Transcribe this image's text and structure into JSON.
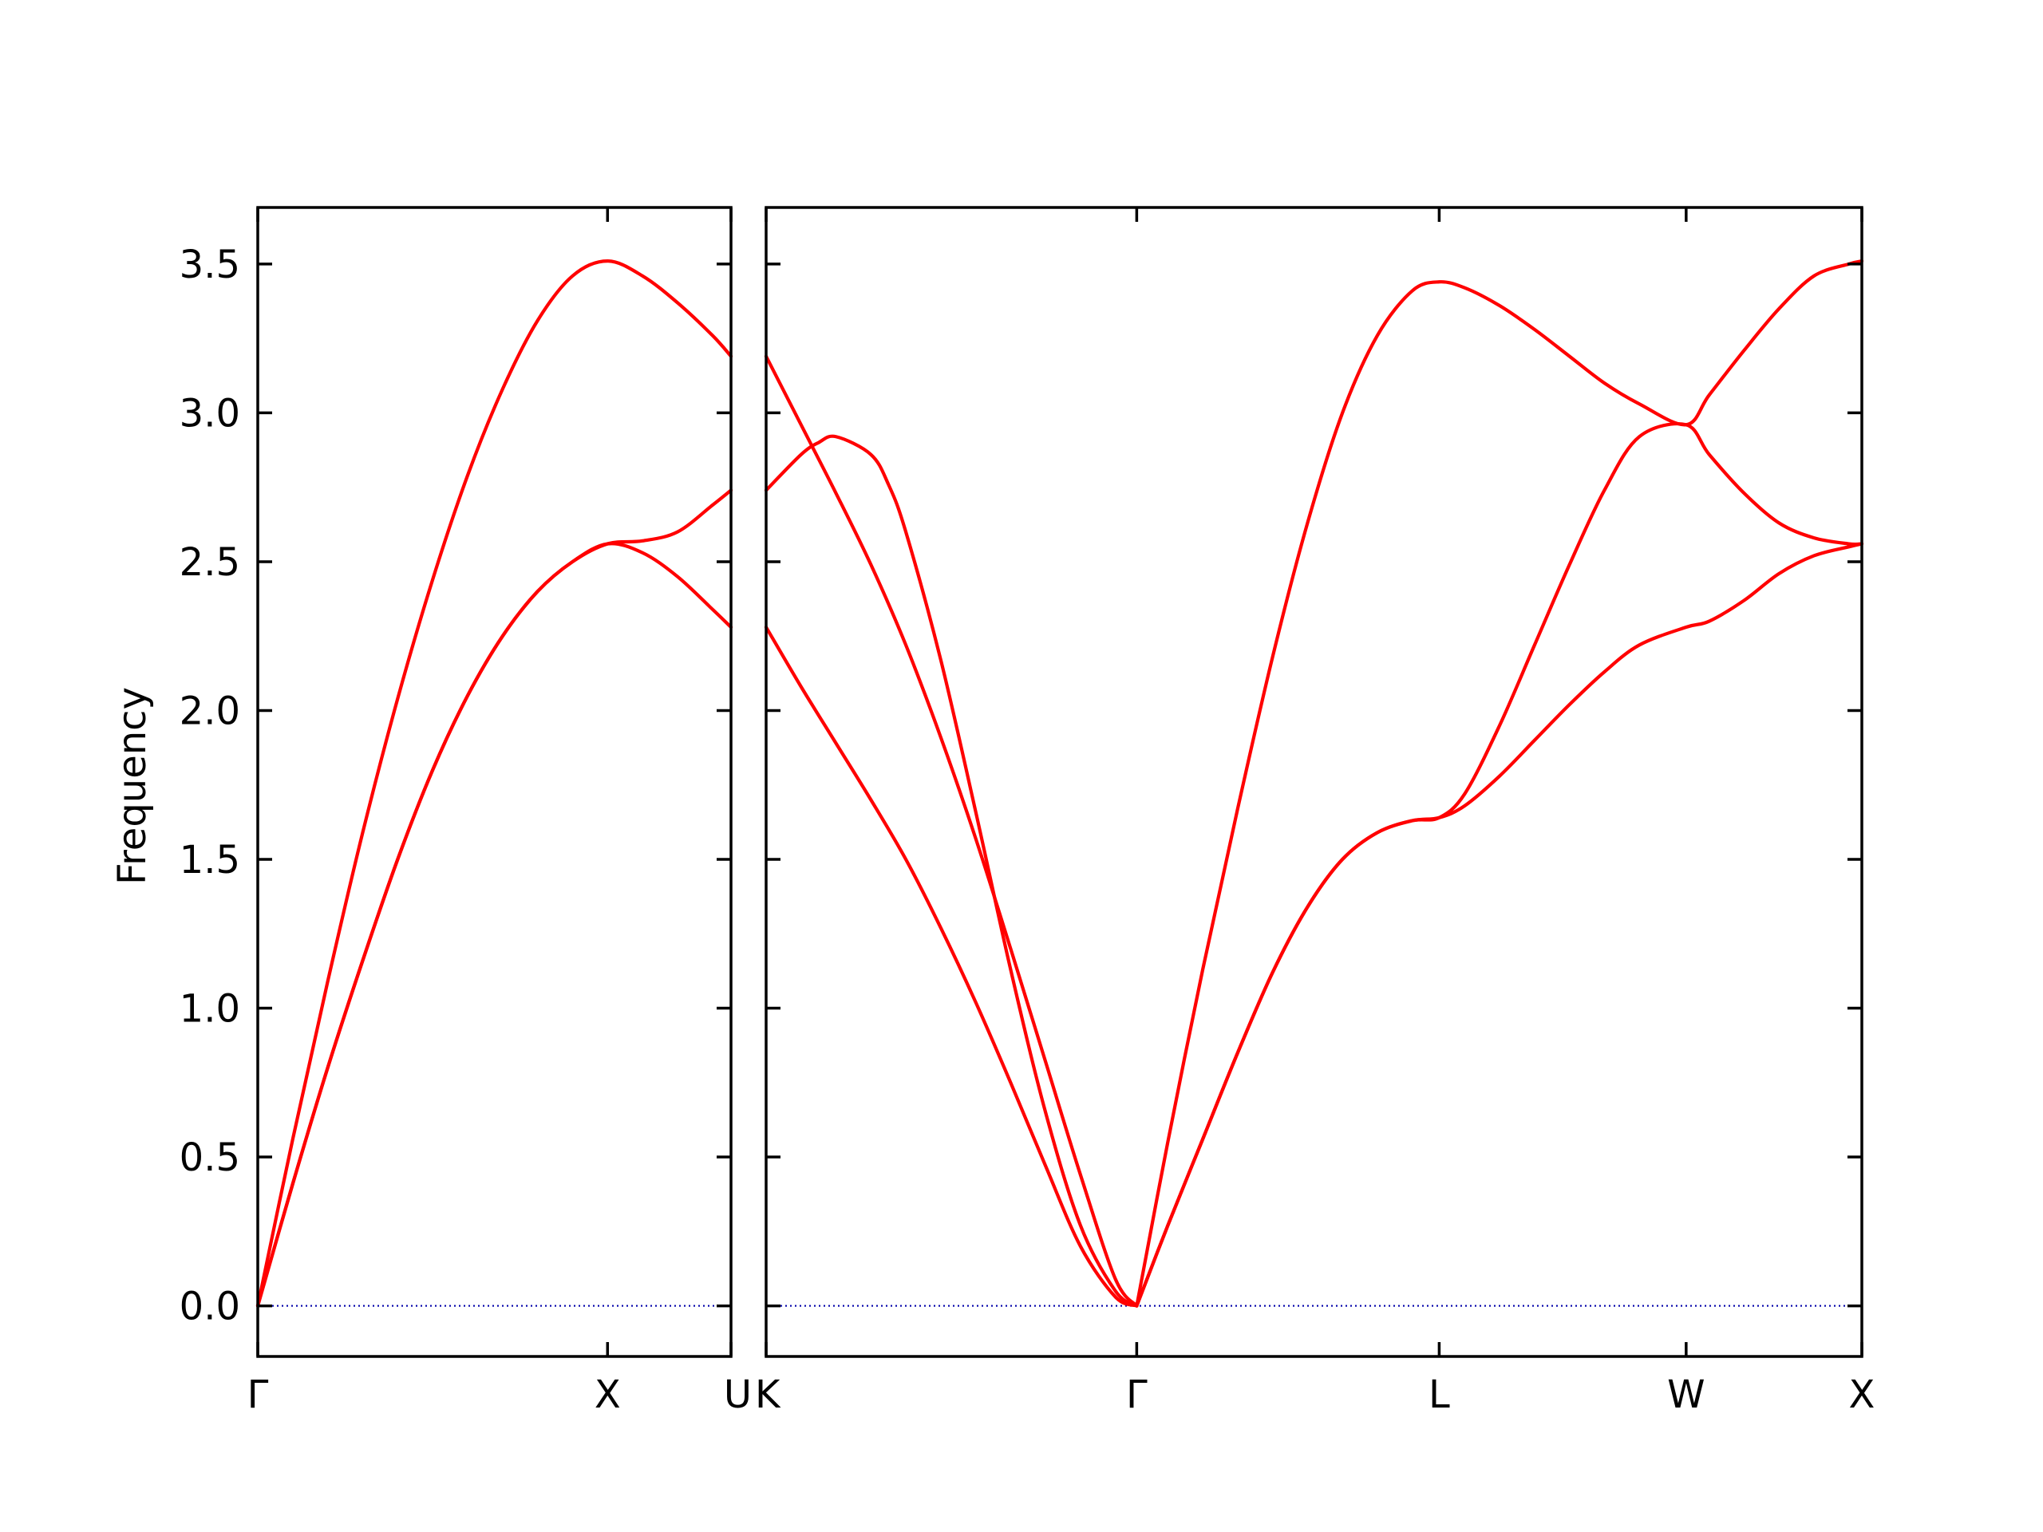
{
  "chart_data": {
    "type": "line",
    "ylabel": "Frequency",
    "ylim": [
      -0.17,
      3.69
    ],
    "yticks": [
      0.0,
      0.5,
      1.0,
      1.5,
      2.0,
      2.5,
      3.0,
      3.5
    ],
    "ytick_labels": [
      "0.0",
      "0.5",
      "1.0",
      "1.5",
      "2.0",
      "2.5",
      "3.0",
      "3.5"
    ],
    "band_color": "#ff0000",
    "zero_line_color": "#0000aa",
    "panels": [
      {
        "x_range": [
          0,
          1.353
        ],
        "xticks": [
          0,
          1.0,
          1.353
        ],
        "xtick_labels": [
          "Γ",
          "X",
          "U"
        ],
        "series": [
          {
            "x": [
              0,
              0.1,
              0.2,
              0.3,
              0.4,
              0.5,
              0.6,
              0.7,
              0.8,
              0.9,
              1.0,
              1.1,
              1.2,
              1.3,
              1.353
            ],
            "y": [
              0,
              0.56,
              1.09,
              1.59,
              2.04,
              2.44,
              2.79,
              3.08,
              3.31,
              3.46,
              3.51,
              3.46,
              3.37,
              3.26,
              3.19
            ]
          },
          {
            "x": [
              0,
              0.1,
              0.2,
              0.3,
              0.4,
              0.5,
              0.6,
              0.7,
              0.8,
              0.9,
              1.0,
              1.1,
              1.2,
              1.3,
              1.353
            ],
            "y": [
              0,
              0.41,
              0.8,
              1.16,
              1.5,
              1.8,
              2.05,
              2.25,
              2.4,
              2.5,
              2.56,
              2.57,
              2.6,
              2.69,
              2.74
            ]
          },
          {
            "x": [
              0,
              0.1,
              0.2,
              0.3,
              0.4,
              0.5,
              0.6,
              0.7,
              0.8,
              0.9,
              1.0,
              1.1,
              1.2,
              1.3,
              1.353
            ],
            "y": [
              0,
              0.41,
              0.8,
              1.16,
              1.5,
              1.8,
              2.05,
              2.25,
              2.4,
              2.5,
              2.56,
              2.53,
              2.45,
              2.34,
              2.28
            ]
          }
        ]
      },
      {
        "x_range": [
          0,
          3.137
        ],
        "xticks": [
          0,
          1.061,
          1.927,
          2.634,
          3.137
        ],
        "xtick_labels": [
          "K",
          "Γ",
          "L",
          "W",
          "X"
        ],
        "series": [
          {
            "x": [
              0,
              0.1,
              0.2,
              0.3,
              0.4,
              0.5,
              0.6,
              0.7,
              0.8,
              0.9,
              1.0,
              1.061
            ],
            "y": [
              3.19,
              2.96,
              2.73,
              2.49,
              2.22,
              1.91,
              1.57,
              1.2,
              0.82,
              0.44,
              0.09,
              0.0
            ]
          },
          {
            "x": [
              0,
              0.1,
              0.15,
              0.2,
              0.3,
              0.35,
              0.4,
              0.5,
              0.6,
              0.7,
              0.8,
              0.9,
              1.0,
              1.061
            ],
            "y": [
              2.74,
              2.86,
              2.9,
              2.92,
              2.86,
              2.76,
              2.6,
              2.17,
              1.66,
              1.13,
              0.65,
              0.27,
              0.05,
              0.0
            ]
          },
          {
            "x": [
              0,
              0.1,
              0.2,
              0.3,
              0.4,
              0.5,
              0.6,
              0.7,
              0.8,
              0.9,
              1.0,
              1.061
            ],
            "y": [
              2.28,
              2.08,
              1.89,
              1.7,
              1.5,
              1.27,
              1.02,
              0.75,
              0.47,
              0.2,
              0.03,
              0.0
            ]
          },
          {
            "x": [
              1.061,
              1.15,
              1.25,
              1.35,
              1.45,
              1.55,
              1.65,
              1.75,
              1.85,
              1.927,
              2.0,
              2.1,
              2.2,
              2.3,
              2.4,
              2.5,
              2.634,
              2.7,
              2.8,
              2.9,
              3.0,
              3.1,
              3.137
            ],
            "y": [
              0.0,
              0.55,
              1.13,
              1.67,
              2.18,
              2.63,
              3.0,
              3.26,
              3.41,
              3.44,
              3.42,
              3.36,
              3.28,
              3.19,
              3.1,
              3.03,
              2.96,
              3.06,
              3.21,
              3.35,
              3.46,
              3.5,
              3.51
            ]
          },
          {
            "x": [
              1.061,
              1.15,
              1.25,
              1.35,
              1.45,
              1.55,
              1.65,
              1.75,
              1.85,
              1.927,
              2.0,
              2.1,
              2.2,
              2.3,
              2.4,
              2.5,
              2.634,
              2.7,
              2.8,
              2.9,
              3.0,
              3.1,
              3.137
            ],
            "y": [
              0.0,
              0.27,
              0.56,
              0.85,
              1.12,
              1.34,
              1.5,
              1.59,
              1.63,
              1.64,
              1.72,
              1.95,
              2.22,
              2.49,
              2.74,
              2.92,
              2.96,
              2.86,
              2.73,
              2.63,
              2.58,
              2.56,
              2.56
            ]
          },
          {
            "x": [
              1.061,
              1.15,
              1.25,
              1.35,
              1.45,
              1.55,
              1.65,
              1.75,
              1.85,
              1.927,
              2.0,
              2.1,
              2.2,
              2.3,
              2.4,
              2.5,
              2.634,
              2.7,
              2.8,
              2.9,
              3.0,
              3.1,
              3.137
            ],
            "y": [
              0.0,
              0.27,
              0.56,
              0.85,
              1.12,
              1.34,
              1.5,
              1.59,
              1.63,
              1.64,
              1.68,
              1.78,
              1.9,
              2.02,
              2.13,
              2.22,
              2.28,
              2.3,
              2.37,
              2.46,
              2.52,
              2.55,
              2.56
            ]
          }
        ]
      }
    ]
  }
}
